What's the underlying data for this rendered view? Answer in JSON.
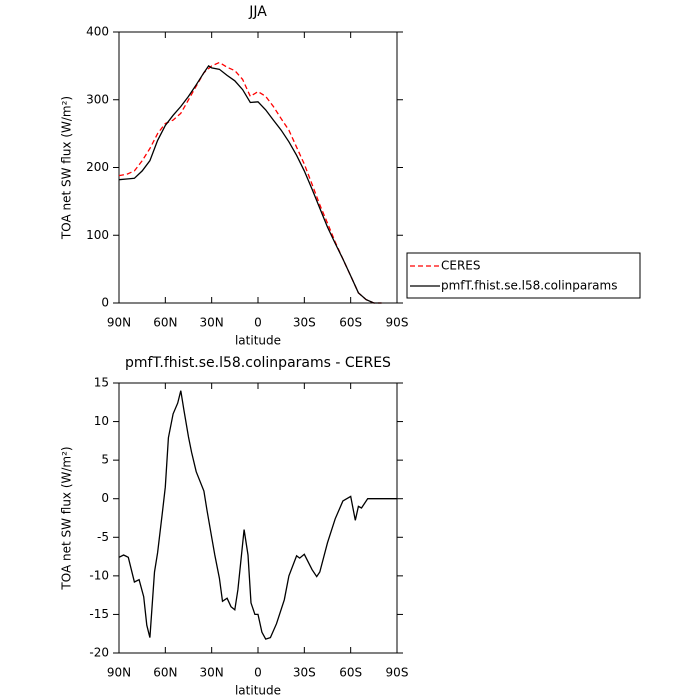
{
  "chart_data": [
    {
      "type": "line",
      "title": "JJA",
      "xlabel": "latitude",
      "ylabel": "TOA net SW flux (W/m²)",
      "x": [
        90,
        85,
        80,
        75,
        70,
        65,
        60,
        55,
        50,
        45,
        40,
        35,
        32,
        30,
        25,
        20,
        15,
        10,
        5,
        0,
        -5,
        -10,
        -15,
        -20,
        -25,
        -30,
        -35,
        -40,
        -45,
        -50,
        -55,
        -60,
        -65,
        -70,
        -75,
        -80
      ],
      "series": [
        {
          "name": "CERES",
          "color": "#ff0000",
          "linestyle": "dashed",
          "values": [
            188,
            190,
            195,
            210,
            228,
            250,
            265,
            270,
            280,
            300,
            320,
            340,
            346,
            350,
            355,
            348,
            343,
            330,
            305,
            312,
            305,
            290,
            272,
            255,
            230,
            205,
            175,
            145,
            118,
            90,
            65,
            40,
            15,
            5,
            0,
            0
          ]
        },
        {
          "name": "pmfT.fhist.se.l58.colinparams",
          "color": "#000000",
          "linestyle": "solid",
          "values": [
            182,
            183,
            184,
            195,
            210,
            240,
            262,
            277,
            290,
            305,
            322,
            340,
            350,
            347,
            345,
            336,
            328,
            315,
            296,
            297,
            285,
            270,
            255,
            238,
            218,
            195,
            168,
            140,
            112,
            88,
            65,
            40,
            15,
            5,
            0,
            0
          ]
        }
      ],
      "xlim": [
        90,
        -90
      ],
      "xticks": [
        {
          "value": 90,
          "label": "90N"
        },
        {
          "value": 60,
          "label": "60N"
        },
        {
          "value": 30,
          "label": "30N"
        },
        0,
        {
          "value": -30,
          "label": "30S"
        },
        {
          "value": -60,
          "label": "60S"
        },
        {
          "value": -90,
          "label": "90S"
        }
      ],
      "ylim": [
        0,
        400
      ],
      "yticks": [
        0,
        100,
        200,
        300,
        400
      ],
      "legend": "outside-right"
    },
    {
      "type": "line",
      "title": "pmfT.fhist.se.l58.colinparams - CERES",
      "xlabel": "latitude",
      "ylabel": "TOA net SW flux (W/m²)",
      "x": [
        90,
        87,
        84,
        80,
        77,
        74,
        72,
        70,
        67,
        65,
        62,
        60,
        58,
        55,
        52,
        50,
        48,
        45,
        43,
        40,
        35,
        33,
        30,
        28,
        25,
        23,
        20,
        17.5,
        15,
        13,
        9,
        6.5,
        4.5,
        2,
        0,
        -2.5,
        -5,
        -8,
        -12,
        -17,
        -20,
        -25,
        -27,
        -30,
        -35,
        -38,
        -40,
        -45,
        -50,
        -55,
        -60,
        -63,
        -65,
        -67,
        -71,
        -85,
        -90
      ],
      "series": [
        {
          "color": "#000000",
          "linestyle": "solid",
          "values": [
            -7.6,
            -7.3,
            -7.6,
            -10.8,
            -10.5,
            -12.7,
            -16.4,
            -18,
            -9.5,
            -7,
            -2,
            1.5,
            7.9,
            11,
            12.4,
            14,
            11.5,
            8,
            6,
            3.5,
            1,
            -1.5,
            -5,
            -7.3,
            -10.3,
            -13.3,
            -12.9,
            -14,
            -14.4,
            -11.8,
            -4,
            -7.3,
            -13.5,
            -15,
            -15,
            -17.3,
            -18.2,
            -18,
            -16.2,
            -13.1,
            -10,
            -7.4,
            -7.7,
            -7.2,
            -9.2,
            -10.1,
            -9.5,
            -5.7,
            -2.6,
            -0.3,
            0.3,
            -2.8,
            -1,
            -1.2,
            0,
            0,
            0
          ]
        }
      ],
      "xlim": [
        90,
        -90
      ],
      "xticks": [
        {
          "value": 90,
          "label": "90N"
        },
        {
          "value": 60,
          "label": "60N"
        },
        {
          "value": 30,
          "label": "30N"
        },
        0,
        {
          "value": -30,
          "label": "30S"
        },
        {
          "value": -60,
          "label": "60S"
        },
        {
          "value": -90,
          "label": "90S"
        }
      ],
      "ylim": [
        -20,
        15
      ],
      "yticks": [
        -20,
        -15,
        -10,
        -5,
        0,
        5,
        10,
        15
      ]
    }
  ]
}
